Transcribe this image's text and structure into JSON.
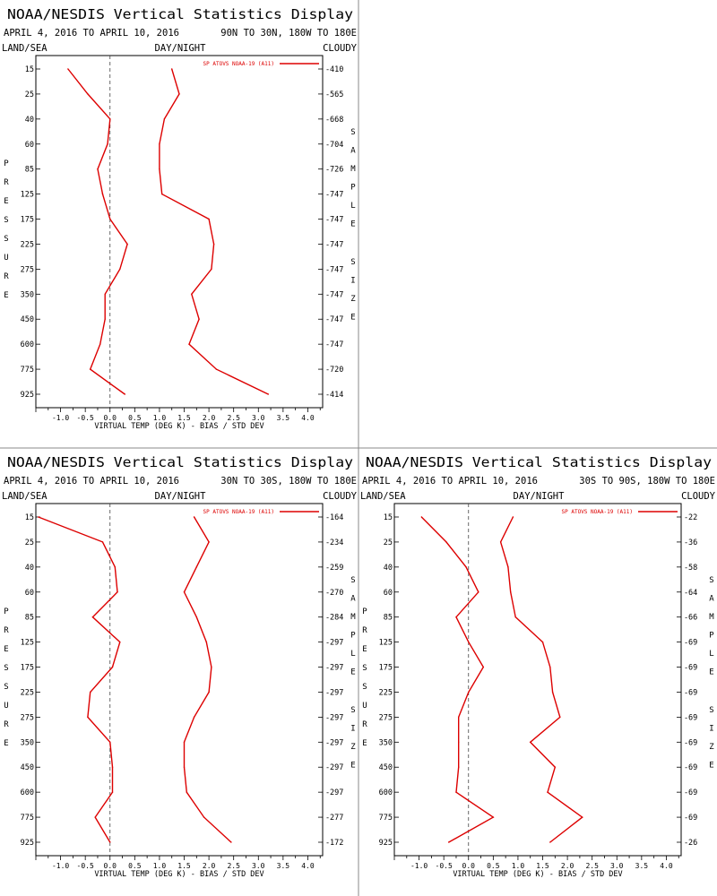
{
  "display_title": "NOAA/NESDIS Vertical Statistics Display",
  "chart_data": [
    {
      "type": "line",
      "title": "NOAA/NESDIS Vertical Statistics Display",
      "date_range": "APRIL 4, 2016 TO APRIL 10, 2016",
      "region": "90N TO 30N, 180W TO 180E",
      "label_left": "LAND/SEA",
      "label_center": "DAY/NIGHT",
      "label_right": "CLOUDY",
      "xlabel": "VIRTUAL TEMP (DEG K) - BIAS / STD DEV",
      "ylabel": "PRESSURE",
      "right_axis_label": "SAMPLE SIZE",
      "xlim": [
        -1.5,
        4.3
      ],
      "x_ticks": [
        -1.0,
        -0.5,
        0.0,
        0.5,
        1.0,
        1.5,
        2.0,
        2.5,
        3.0,
        3.5,
        4.0
      ],
      "pressure_levels": [
        15,
        25,
        40,
        60,
        85,
        125,
        175,
        225,
        275,
        350,
        450,
        600,
        775,
        925
      ],
      "sample_size": [
        410,
        565,
        668,
        704,
        726,
        747,
        747,
        747,
        747,
        747,
        747,
        747,
        720,
        414
      ],
      "legend": "SP ATOVS NOAA-19 (A11)",
      "legend_position": "top-right",
      "series": [
        {
          "name": "bias",
          "values": [
            -0.85,
            -0.45,
            0.0,
            -0.05,
            -0.25,
            -0.15,
            0.0,
            0.35,
            0.2,
            -0.1,
            -0.1,
            -0.2,
            -0.4,
            0.3
          ]
        },
        {
          "name": "std dev",
          "values": [
            1.25,
            1.4,
            1.1,
            1.0,
            1.0,
            1.05,
            2.0,
            2.1,
            2.05,
            1.65,
            1.8,
            1.6,
            2.15,
            3.2
          ]
        }
      ]
    },
    {
      "type": "line",
      "title": "NOAA/NESDIS Vertical Statistics Display",
      "date_range": "APRIL 4, 2016 TO APRIL 10, 2016",
      "region": "30N TO 30S, 180W TO 180E",
      "label_left": "LAND/SEA",
      "label_center": "DAY/NIGHT",
      "label_right": "CLOUDY",
      "xlabel": "VIRTUAL TEMP (DEG K) - BIAS / STD DEV",
      "ylabel": "PRESSURE",
      "right_axis_label": "SAMPLE SIZE",
      "xlim": [
        -1.5,
        4.3
      ],
      "x_ticks": [
        -1.0,
        -0.5,
        0.0,
        0.5,
        1.0,
        1.5,
        2.0,
        2.5,
        3.0,
        3.5,
        4.0
      ],
      "pressure_levels": [
        15,
        25,
        40,
        60,
        85,
        125,
        175,
        225,
        275,
        350,
        450,
        600,
        775,
        925
      ],
      "sample_size": [
        164,
        234,
        259,
        270,
        284,
        297,
        297,
        297,
        297,
        297,
        297,
        297,
        277,
        172
      ],
      "legend": "SP ATOVS NOAA-19 (A11)",
      "legend_position": "top-right",
      "series": [
        {
          "name": "bias",
          "values": [
            -1.45,
            -0.15,
            0.1,
            0.15,
            -0.35,
            0.2,
            0.05,
            -0.4,
            -0.45,
            0.0,
            0.05,
            0.05,
            -0.3,
            0.0
          ]
        },
        {
          "name": "std dev",
          "values": [
            1.7,
            2.0,
            1.75,
            1.5,
            1.75,
            1.95,
            2.05,
            2.0,
            1.7,
            1.5,
            1.5,
            1.55,
            1.9,
            2.45
          ]
        }
      ]
    },
    {
      "type": "line",
      "title": "NOAA/NESDIS Vertical Statistics Display",
      "date_range": "APRIL 4, 2016 TO APRIL 10, 2016",
      "region": "30S TO 90S, 180W TO 180E",
      "label_left": "LAND/SEA",
      "label_center": "DAY/NIGHT",
      "label_right": "CLOUDY",
      "xlabel": "VIRTUAL TEMP (DEG K) - BIAS / STD DEV",
      "ylabel": "PRESSURE",
      "right_axis_label": "SAMPLE SIZE",
      "xlim": [
        -1.5,
        4.3
      ],
      "x_ticks": [
        -1.0,
        -0.5,
        0.0,
        0.5,
        1.0,
        1.5,
        2.0,
        2.5,
        3.0,
        3.5,
        4.0
      ],
      "pressure_levels": [
        15,
        25,
        40,
        60,
        85,
        125,
        175,
        225,
        275,
        350,
        450,
        600,
        775,
        925
      ],
      "sample_size": [
        22,
        36,
        58,
        64,
        66,
        69,
        69,
        69,
        69,
        69,
        69,
        69,
        69,
        26
      ],
      "legend": "SP ATOVS NOAA-19 (A11)",
      "legend_position": "top-right",
      "series": [
        {
          "name": "bias",
          "values": [
            -0.95,
            -0.45,
            -0.05,
            0.2,
            -0.25,
            0.0,
            0.3,
            0.0,
            -0.2,
            -0.2,
            -0.2,
            -0.25,
            0.5,
            -0.4
          ]
        },
        {
          "name": "std dev",
          "values": [
            0.9,
            0.65,
            0.8,
            0.85,
            0.95,
            1.5,
            1.65,
            1.7,
            1.85,
            1.25,
            1.75,
            1.6,
            2.3,
            1.65
          ]
        }
      ]
    }
  ]
}
